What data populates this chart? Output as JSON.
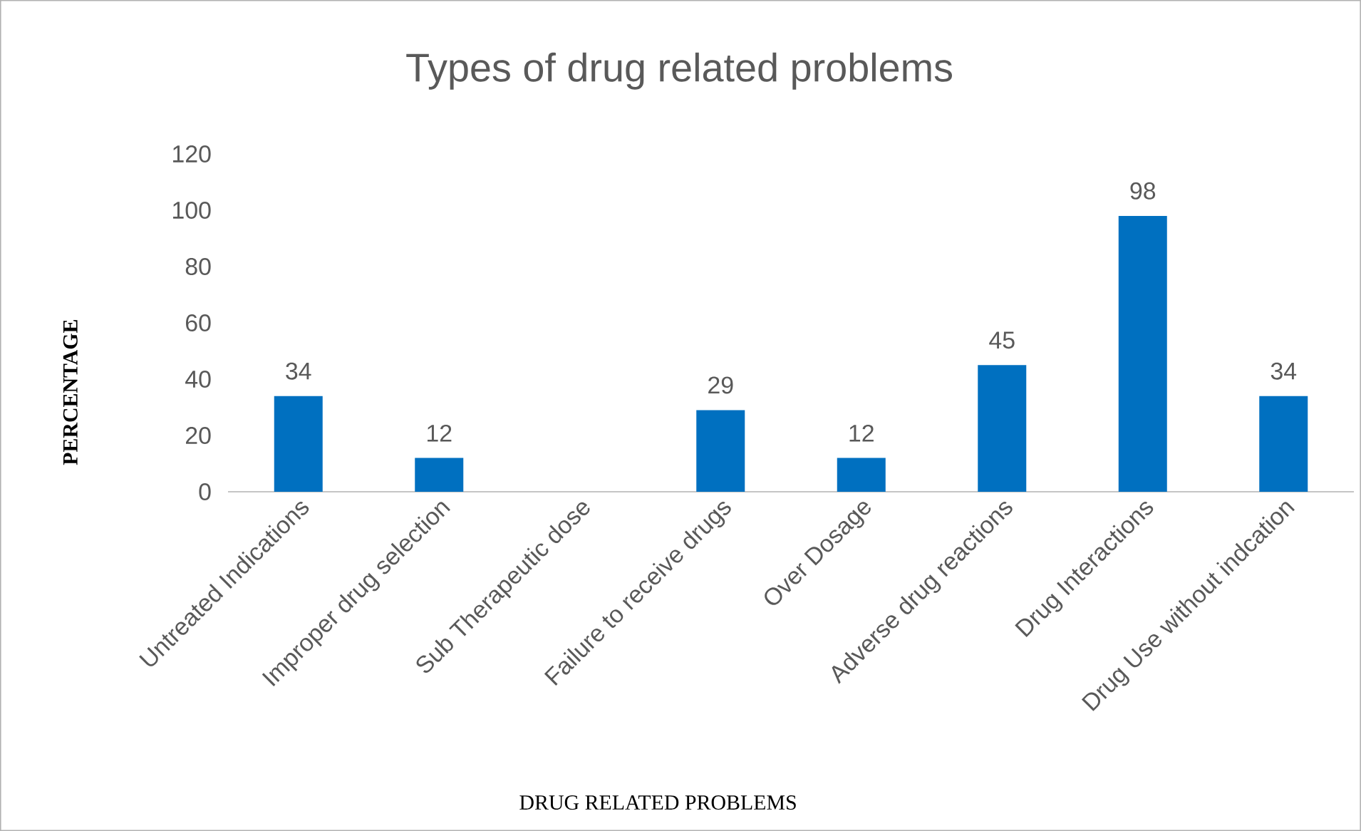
{
  "chart_data": {
    "type": "bar",
    "title": "Types of drug related problems",
    "xlabel": "DRUG RELATED PROBLEMS",
    "ylabel": "PERCENTAGE",
    "categories": [
      "Untreated Indications",
      "Improper drug selection",
      "Sub Therapeutic dose",
      "Failure to receive drugs",
      "Over Dosage",
      "Adverse drug reactions",
      "Drug Interactions",
      "Drug Use without indcation"
    ],
    "values": [
      34,
      12,
      null,
      29,
      12,
      45,
      98,
      34
    ],
    "color": "#0070c0",
    "ylim": [
      0,
      120
    ],
    "yticks": [
      0,
      20,
      40,
      60,
      80,
      100,
      120
    ],
    "data_labels": true,
    "grid": false,
    "legend": false
  }
}
